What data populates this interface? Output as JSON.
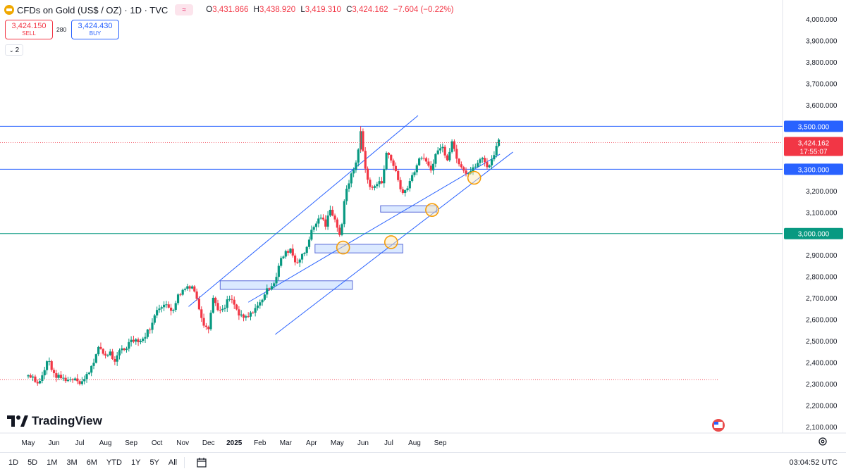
{
  "header": {
    "symbol": "CFDs on Gold (US$ / OZ) · 1D · TVC",
    "ohlc": [
      {
        "key": "O",
        "value": "3,431.866"
      },
      {
        "key": "H",
        "value": "3,438.920"
      },
      {
        "key": "L",
        "value": "3,419.310"
      },
      {
        "key": "C",
        "value": "3,424.162"
      },
      {
        "key": "",
        "value": "−7.604 (−0.22%)"
      }
    ],
    "flag_glyph": "≈"
  },
  "trade": {
    "sell_price": "3,424.150",
    "sell_label": "SELL",
    "spread": "280",
    "buy_price": "3,424.430",
    "buy_label": "BUY"
  },
  "indicators_count": "2",
  "brand": "TradingView",
  "timeframes": [
    "1D",
    "5D",
    "1M",
    "3M",
    "6M",
    "YTD",
    "1Y",
    "5Y",
    "All"
  ],
  "clock": "03:04:52 UTC",
  "colors": {
    "up": "#089981",
    "down": "#f23645",
    "channel": "#2962ff",
    "level_blue": "#2962ff",
    "level_green": "#089981",
    "zone_fill": "#dbe9ff",
    "circle": "#f59e0b"
  },
  "chart_data": {
    "type": "candlestick",
    "title": "CFDs on Gold (US$ / OZ) · 1D · TVC",
    "ylim": [
      2080000,
      4000000
    ],
    "ylabel_ticks": [
      "4,000.000",
      "3,900.000",
      "3,800.000",
      "3,700.000",
      "3,600.000",
      "3,500.000",
      "3,400.000",
      "3,300.000",
      "3,200.000",
      "3,100.000",
      "3,000.000",
      "2,900.000",
      "2,800.000",
      "2,700.000",
      "2,600.000",
      "2,500.000",
      "2,400.000",
      "2,300.000",
      "2,200.000",
      "2,100.000"
    ],
    "y_tick_values": [
      4000000,
      3900000,
      3800000,
      3700000,
      3600000,
      3500000,
      3400000,
      3300000,
      3200000,
      3100000,
      3000000,
      2900000,
      2800000,
      2700000,
      2600000,
      2500000,
      2400000,
      2300000,
      2200000,
      2100000
    ],
    "x_tick_labels": [
      "May",
      "Jun",
      "Jul",
      "Aug",
      "Sep",
      "Oct",
      "Nov",
      "Dec",
      "2025",
      "Feb",
      "Mar",
      "Apr",
      "May",
      "Jun",
      "Jul",
      "Aug",
      "Sep"
    ],
    "x_tick_index": [
      0,
      22,
      44,
      66,
      88,
      110,
      132,
      154,
      176,
      198,
      220,
      242,
      264,
      286,
      308,
      330,
      352
    ],
    "price_path": [
      [
        0,
        2340000
      ],
      [
        4,
        2335000
      ],
      [
        8,
        2300000
      ],
      [
        13,
        2345000
      ],
      [
        17,
        2420000
      ],
      [
        22,
        2340000
      ],
      [
        27,
        2330000
      ],
      [
        32,
        2320000
      ],
      [
        36,
        2320000
      ],
      [
        41,
        2330000
      ],
      [
        44,
        2305000
      ],
      [
        48,
        2320000
      ],
      [
        52,
        2360000
      ],
      [
        57,
        2420000
      ],
      [
        61,
        2475000
      ],
      [
        65,
        2430000
      ],
      [
        70,
        2445000
      ],
      [
        74,
        2395000
      ],
      [
        79,
        2465000
      ],
      [
        83,
        2460000
      ],
      [
        88,
        2510000
      ],
      [
        92,
        2505000
      ],
      [
        97,
        2500000
      ],
      [
        101,
        2535000
      ],
      [
        106,
        2580000
      ],
      [
        110,
        2650000
      ],
      [
        115,
        2670000
      ],
      [
        119,
        2660000
      ],
      [
        123,
        2640000
      ],
      [
        128,
        2710000
      ],
      [
        132,
        2735000
      ],
      [
        136,
        2755000
      ],
      [
        141,
        2755000
      ],
      [
        145,
        2670000
      ],
      [
        150,
        2580000
      ],
      [
        154,
        2565000
      ],
      [
        158,
        2700000
      ],
      [
        163,
        2640000
      ],
      [
        167,
        2640000
      ],
      [
        171,
        2700000
      ],
      [
        175,
        2680000
      ],
      [
        180,
        2620000
      ],
      [
        184,
        2605000
      ],
      [
        189,
        2615000
      ],
      [
        193,
        2650000
      ],
      [
        197,
        2665000
      ],
      [
        202,
        2720000
      ],
      [
        206,
        2750000
      ],
      [
        211,
        2780000
      ],
      [
        215,
        2870000
      ],
      [
        219,
        2905000
      ],
      [
        224,
        2930000
      ],
      [
        228,
        2870000
      ],
      [
        232,
        2880000
      ],
      [
        237,
        2920000
      ],
      [
        241,
        3000000
      ],
      [
        246,
        3050000
      ],
      [
        250,
        3080000
      ],
      [
        254,
        3035000
      ],
      [
        258,
        3120000
      ],
      [
        263,
        3050000
      ],
      [
        267,
        2980000
      ],
      [
        271,
        3200000
      ],
      [
        276,
        3270000
      ],
      [
        280,
        3330000
      ],
      [
        284,
        3470000
      ],
      [
        288,
        3300000
      ],
      [
        293,
        3200000
      ],
      [
        297,
        3230000
      ],
      [
        302,
        3240000
      ],
      [
        306,
        3380000
      ],
      [
        310,
        3340000
      ],
      [
        315,
        3280000
      ],
      [
        319,
        3180000
      ],
      [
        323,
        3210000
      ],
      [
        328,
        3270000
      ],
      [
        332,
        3320000
      ],
      [
        336,
        3360000
      ],
      [
        341,
        3320000
      ],
      [
        345,
        3300000
      ],
      [
        349,
        3390000
      ],
      [
        354,
        3400000
      ],
      [
        358,
        3350000
      ],
      [
        362,
        3430000
      ],
      [
        367,
        3340000
      ],
      [
        371,
        3310000
      ],
      [
        375,
        3280000
      ],
      [
        380,
        3300000
      ],
      [
        384,
        3330000
      ],
      [
        388,
        3350000
      ],
      [
        393,
        3310000
      ],
      [
        397,
        3350000
      ],
      [
        401,
        3440000
      ],
      [
        403,
        3424162
      ]
    ],
    "last_price": "3,424.162",
    "countdown": "17:55:07",
    "horizontal_levels": [
      {
        "value": 3500000,
        "label": "3,500.000",
        "color": "#2962ff"
      },
      {
        "value": 3300000,
        "label": "3,300.000",
        "color": "#2962ff"
      },
      {
        "value": 3000000,
        "label": "3,000.000",
        "color": "#089981"
      }
    ],
    "dotted_level": 2320000,
    "channel_lines": [
      {
        "from": [
          137,
          2660000
        ],
        "to": [
          333,
          3550000
        ]
      },
      {
        "from": [
          188,
          2680000
        ],
        "to": [
          403,
          3370000
        ]
      },
      {
        "from": [
          211,
          2530000
        ],
        "to": [
          414,
          3380000
        ]
      }
    ],
    "zones": [
      {
        "x0": 164,
        "x1": 277,
        "y0": 2780000,
        "y1": 2740000
      },
      {
        "x0": 245,
        "x1": 320,
        "y0": 2950000,
        "y1": 2910000
      },
      {
        "x0": 301,
        "x1": 349,
        "y0": 3130000,
        "y1": 3100000
      }
    ],
    "circles": [
      {
        "x": 269,
        "y": 2935000
      },
      {
        "x": 310,
        "y": 2960000
      },
      {
        "x": 345,
        "y": 3110000
      },
      {
        "x": 381,
        "y": 3260000
      }
    ]
  }
}
